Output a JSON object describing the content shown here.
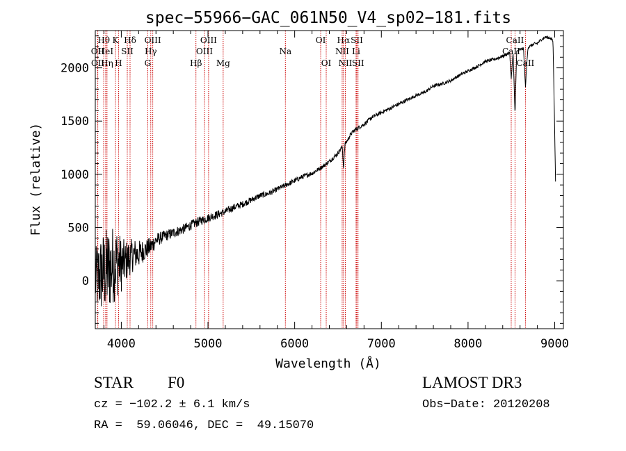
{
  "chart_data": {
    "type": "line",
    "title": "spec−55966−GAC_061N50_V4_sp02−181.fits",
    "xlabel": "Wavelength (Å)",
    "ylabel": "Flux (relative)",
    "xlim": [
      3700,
      9100
    ],
    "ylim": [
      -450,
      2350
    ],
    "x_ticks": [
      4000,
      5000,
      6000,
      7000,
      8000,
      9000
    ],
    "y_ticks": [
      0,
      500,
      1000,
      1500,
      2000
    ],
    "grid": false,
    "series": [
      {
        "name": "flux",
        "x": [
          3700,
          3750,
          3800,
          3850,
          3900,
          3950,
          4000,
          4050,
          4100,
          4150,
          4200,
          4250,
          4300,
          4350,
          4400,
          4450,
          4500,
          4600,
          4700,
          4800,
          4900,
          5000,
          5100,
          5200,
          5300,
          5400,
          5500,
          5600,
          5700,
          5800,
          5900,
          6000,
          6100,
          6200,
          6300,
          6400,
          6500,
          6550,
          6563,
          6580,
          6650,
          6700,
          6800,
          6900,
          7000,
          7100,
          7200,
          7300,
          7400,
          7500,
          7600,
          7700,
          7800,
          7900,
          8000,
          8100,
          8200,
          8300,
          8400,
          8480,
          8498,
          8520,
          8542,
          8560,
          8600,
          8640,
          8662,
          8690,
          8750,
          8800,
          8850,
          8900,
          8950,
          8980,
          9000,
          9010
        ],
        "y": [
          0,
          50,
          80,
          100,
          150,
          180,
          150,
          180,
          220,
          250,
          250,
          280,
          300,
          330,
          380,
          400,
          420,
          450,
          480,
          520,
          560,
          590,
          620,
          650,
          690,
          720,
          760,
          800,
          820,
          860,
          900,
          940,
          980,
          1010,
          1060,
          1120,
          1200,
          1260,
          1060,
          1280,
          1380,
          1420,
          1470,
          1540,
          1580,
          1620,
          1660,
          1700,
          1740,
          1770,
          1830,
          1850,
          1880,
          1930,
          1970,
          2010,
          2060,
          2080,
          2110,
          2140,
          1900,
          2140,
          1550,
          2150,
          2170,
          2180,
          1820,
          2190,
          2220,
          2230,
          2270,
          2290,
          2280,
          2250,
          1400,
          900
        ],
        "noise": [
          300,
          380,
          400,
          420,
          380,
          340,
          260,
          200,
          170,
          150,
          130,
          110,
          95,
          85,
          70,
          60,
          55,
          50,
          48,
          46,
          44,
          40,
          38,
          36,
          34,
          32,
          30,
          28,
          26,
          25,
          25,
          24,
          24,
          22,
          20,
          20,
          20,
          20,
          20,
          20,
          20,
          20,
          20,
          18,
          18,
          18,
          18,
          16,
          16,
          16,
          16,
          16,
          15,
          15,
          15,
          15,
          15,
          15,
          15,
          15,
          15,
          15,
          15,
          15,
          15,
          15,
          15,
          15,
          15,
          15,
          15,
          15,
          15,
          15,
          10,
          10
        ]
      }
    ],
    "line_markers": [
      {
        "label": "Hθ",
        "wavelength": 3797,
        "row": 1
      },
      {
        "label": "OII",
        "wavelength": 3727,
        "row": 2
      },
      {
        "label": "OII",
        "wavelength": 3729,
        "row": 3
      },
      {
        "label": "HeI",
        "wavelength": 3820,
        "row": 2
      },
      {
        "label": "Hη",
        "wavelength": 3835,
        "row": 3
      },
      {
        "label": "K",
        "wavelength": 3933,
        "row": 1
      },
      {
        "label": "SII",
        "wavelength": 4069,
        "row": 2
      },
      {
        "label": "H",
        "wavelength": 3968,
        "row": 3
      },
      {
        "label": "Hδ",
        "wavelength": 4101,
        "row": 1
      },
      {
        "label": "OIII",
        "wavelength": 4363,
        "row": 1
      },
      {
        "label": "Hγ",
        "wavelength": 4340,
        "row": 2
      },
      {
        "label": "G",
        "wavelength": 4305,
        "row": 3
      },
      {
        "label": "Hβ",
        "wavelength": 4861,
        "row": 3
      },
      {
        "label": "OIII",
        "wavelength": 5007,
        "row": 1
      },
      {
        "label": "OIII",
        "wavelength": 4959,
        "row": 2
      },
      {
        "label": "Mg",
        "wavelength": 5175,
        "row": 3
      },
      {
        "label": "Na",
        "wavelength": 5893,
        "row": 2
      },
      {
        "label": "OI",
        "wavelength": 6300,
        "row": 1
      },
      {
        "label": "OI",
        "wavelength": 6364,
        "row": 3
      },
      {
        "label": "Hα",
        "wavelength": 6563,
        "row": 1
      },
      {
        "label": "NII",
        "wavelength": 6548,
        "row": 2
      },
      {
        "label": "NII",
        "wavelength": 6584,
        "row": 3
      },
      {
        "label": "SII",
        "wavelength": 6717,
        "row": 1
      },
      {
        "label": "Li",
        "wavelength": 6708,
        "row": 2
      },
      {
        "label": "SII",
        "wavelength": 6731,
        "row": 3
      },
      {
        "label": "CaII",
        "wavelength": 8542,
        "row": 1
      },
      {
        "label": "CaII",
        "wavelength": 8498,
        "row": 2
      },
      {
        "label": "CaII",
        "wavelength": 8662,
        "row": 3
      }
    ]
  },
  "info": {
    "object_type": "STAR",
    "subclass": "F0",
    "survey": "LAMOST DR3",
    "velocity": "cz = −102.2 ± 6.1 km/s",
    "obs_date": "Obs−Date: 20120208",
    "coords": "RA =  59.06046, DEC =  49.15070"
  }
}
